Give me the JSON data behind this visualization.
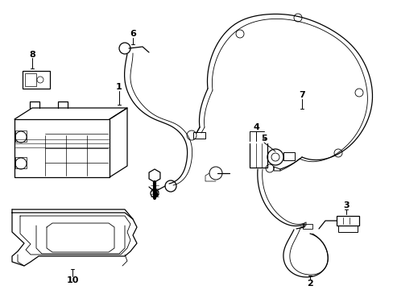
{
  "bg_color": "#ffffff",
  "line_color": "#000000",
  "lw": 0.9,
  "tlw": 0.6
}
